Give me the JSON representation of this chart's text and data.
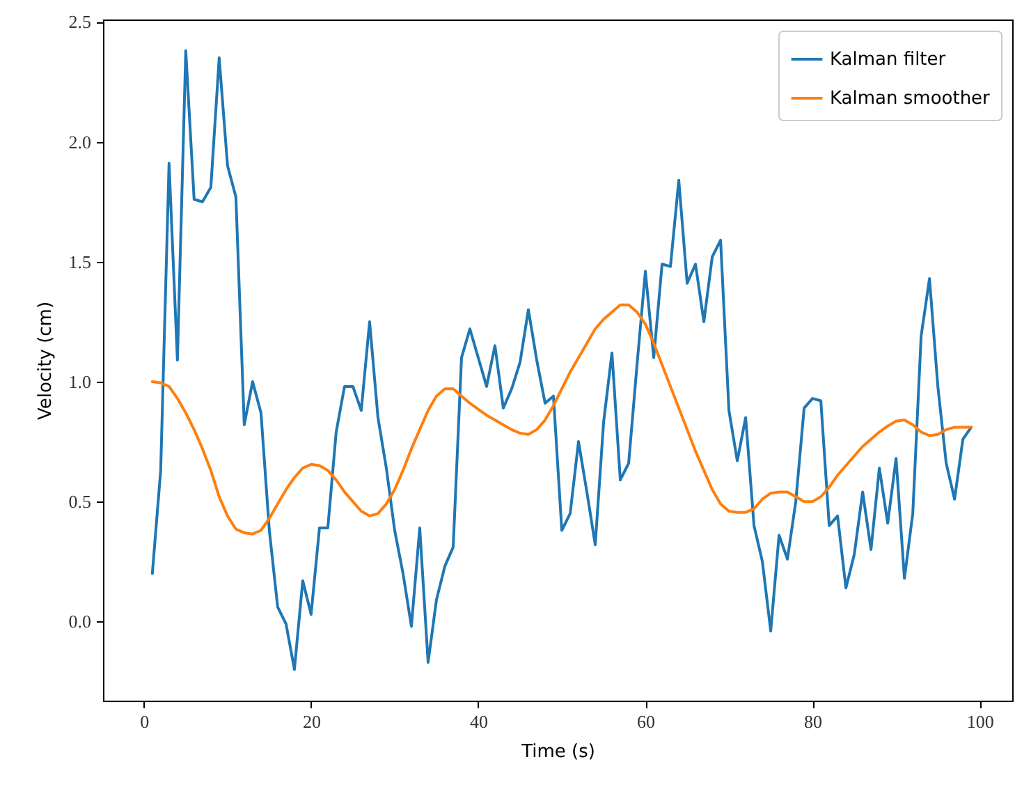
{
  "chart_data": {
    "type": "line",
    "xlabel": "Time (s)",
    "ylabel": "Velocity (cm)",
    "x": [
      1,
      2,
      3,
      4,
      5,
      6,
      7,
      8,
      9,
      10,
      11,
      12,
      13,
      14,
      15,
      16,
      17,
      18,
      19,
      20,
      21,
      22,
      23,
      24,
      25,
      26,
      27,
      28,
      29,
      30,
      31,
      32,
      33,
      34,
      35,
      36,
      37,
      38,
      39,
      40,
      41,
      42,
      43,
      44,
      45,
      46,
      47,
      48,
      49,
      50,
      51,
      52,
      53,
      54,
      55,
      56,
      57,
      58,
      59,
      60,
      61,
      62,
      63,
      64,
      65,
      66,
      67,
      68,
      69,
      70,
      71,
      72,
      73,
      74,
      75,
      76,
      77,
      78,
      79,
      80,
      81,
      82,
      83,
      84,
      85,
      86,
      87,
      88,
      89,
      90,
      91,
      92,
      93,
      94,
      95,
      96,
      97,
      98,
      99
    ],
    "series": [
      {
        "name": "Kalman filter",
        "color": "#1f77b4",
        "values": [
          0.2,
          0.63,
          1.91,
          1.09,
          2.38,
          1.76,
          1.75,
          1.81,
          2.35,
          1.9,
          1.77,
          0.82,
          1.0,
          0.87,
          0.38,
          0.06,
          -0.01,
          -0.2,
          0.17,
          0.03,
          0.39,
          0.39,
          0.79,
          0.98,
          0.98,
          0.88,
          1.25,
          0.85,
          0.64,
          0.38,
          0.2,
          -0.02,
          0.39,
          -0.17,
          0.09,
          0.23,
          0.31,
          1.1,
          1.22,
          1.1,
          0.98,
          1.15,
          0.89,
          0.97,
          1.08,
          1.3,
          1.09,
          0.91,
          0.94,
          0.38,
          0.45,
          0.75,
          0.54,
          0.32,
          0.83,
          1.12,
          0.59,
          0.66,
          1.07,
          1.46,
          1.1,
          1.49,
          1.48,
          1.84,
          1.41,
          1.49,
          1.25,
          1.52,
          1.59,
          0.88,
          0.67,
          0.85,
          0.4,
          0.25,
          -0.04,
          0.36,
          0.26,
          0.5,
          0.89,
          0.93,
          0.92,
          0.4,
          0.44,
          0.14,
          0.28,
          0.54,
          0.3,
          0.64,
          0.41,
          0.68,
          0.18,
          0.45,
          1.19,
          1.43,
          0.98,
          0.66,
          0.51,
          0.76,
          0.81
        ]
      },
      {
        "name": "Kalman smoother",
        "color": "#ff7f0e",
        "values": [
          1.0,
          0.995,
          0.98,
          0.93,
          0.87,
          0.8,
          0.72,
          0.63,
          0.52,
          0.44,
          0.385,
          0.37,
          0.365,
          0.38,
          0.43,
          0.49,
          0.55,
          0.6,
          0.64,
          0.655,
          0.65,
          0.63,
          0.59,
          0.54,
          0.5,
          0.46,
          0.44,
          0.45,
          0.49,
          0.55,
          0.63,
          0.72,
          0.8,
          0.88,
          0.94,
          0.97,
          0.97,
          0.94,
          0.91,
          0.885,
          0.86,
          0.84,
          0.82,
          0.8,
          0.785,
          0.78,
          0.8,
          0.84,
          0.9,
          0.97,
          1.04,
          1.1,
          1.16,
          1.22,
          1.26,
          1.29,
          1.32,
          1.32,
          1.29,
          1.24,
          1.16,
          1.07,
          0.98,
          0.89,
          0.8,
          0.71,
          0.63,
          0.55,
          0.49,
          0.46,
          0.455,
          0.455,
          0.47,
          0.51,
          0.535,
          0.54,
          0.54,
          0.52,
          0.5,
          0.5,
          0.52,
          0.56,
          0.61,
          0.65,
          0.69,
          0.73,
          0.76,
          0.79,
          0.815,
          0.835,
          0.84,
          0.82,
          0.79,
          0.775,
          0.78,
          0.8,
          0.81,
          0.81,
          0.81
        ]
      }
    ],
    "xlim": [
      -4.9,
      103.9
    ],
    "ylim": [
      -0.33,
      2.51
    ],
    "xticks": [
      0,
      20,
      40,
      60,
      80,
      100
    ],
    "yticks": [
      {
        "value": 0,
        "label": "0.0"
      },
      {
        "value": 0.5,
        "label": "0.5"
      },
      {
        "value": 1,
        "label": "1.0"
      },
      {
        "value": 1.5,
        "label": "1.5"
      },
      {
        "value": 2,
        "label": "2.0"
      },
      {
        "value": 2.5,
        "label": "2.5"
      }
    ],
    "legend": "top right",
    "line_style": "solid"
  }
}
